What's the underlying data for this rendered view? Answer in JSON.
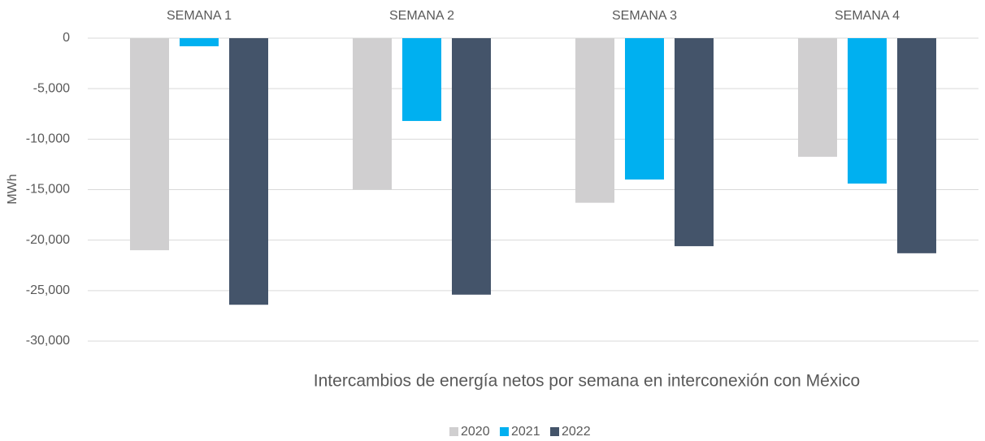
{
  "chart_data": {
    "type": "bar",
    "title": "Intercambios de energía netos por semana en interconexión con México",
    "y_label": "MWh",
    "categories": [
      "SEMANA 1",
      "SEMANA 2",
      "SEMANA 3",
      "SEMANA 4"
    ],
    "series": [
      {
        "name": "2020",
        "color": "#d0cfd0",
        "values": [
          -21000,
          -15000,
          -16300,
          -11750
        ]
      },
      {
        "name": "2021",
        "color": "#00b0f0",
        "values": [
          -800,
          -8200,
          -14000,
          -14400
        ]
      },
      {
        "name": "2022",
        "color": "#44546a",
        "values": [
          -26400,
          -25400,
          -20600,
          -21300
        ]
      }
    ],
    "ylim": [
      -30000,
      0
    ],
    "yticks": [
      0,
      {
        "value": -5000,
        "label": "-5,000"
      },
      {
        "value": -10000,
        "label": "-10,000"
      },
      {
        "value": -15000,
        "label": "-15,000"
      },
      {
        "value": -20000,
        "label": "-20,000"
      },
      {
        "value": -25000,
        "label": "-25,000"
      },
      {
        "value": -30000,
        "label": "-30,000"
      }
    ],
    "grid": true
  }
}
